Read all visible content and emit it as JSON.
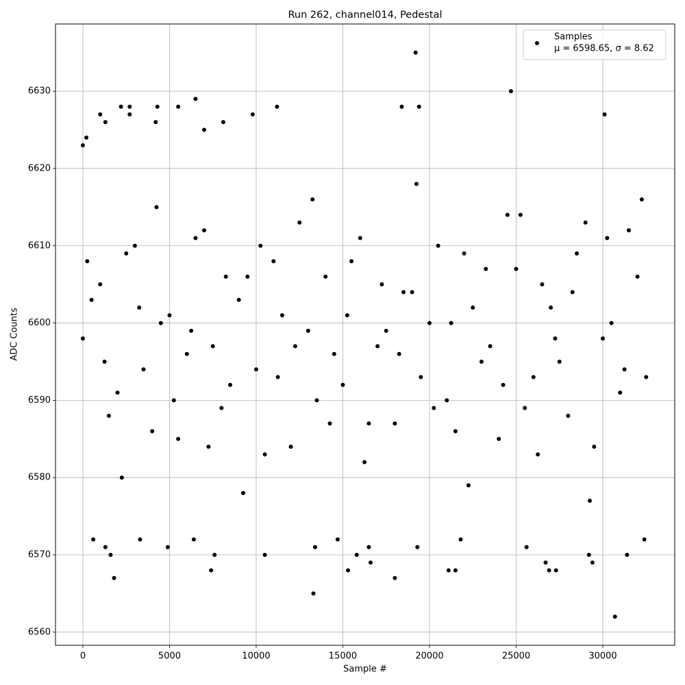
{
  "chart_data": {
    "type": "scatter",
    "title": "Run 262, channel014, Pedestal",
    "x_label": "Sample #",
    "y_label": "ADC Counts",
    "xlim": [
      -1580,
      34150
    ],
    "ylim": [
      6558.3,
      6638.7
    ],
    "xticks": [
      0,
      5000,
      10000,
      15000,
      20000,
      25000,
      30000
    ],
    "yticks": [
      6560,
      6570,
      6580,
      6590,
      6600,
      6610,
      6620,
      6630
    ],
    "grid": true,
    "legend": "upper right",
    "annotation": "μ = 6598.65, σ = 8.62",
    "series": [
      {
        "name": "Samples",
        "color": "#000000",
        "x": [
          0,
          1000,
          2000,
          3000,
          4000,
          5000,
          6000,
          7000,
          8000,
          9000,
          10000,
          11000,
          12000,
          13000,
          14000,
          15000,
          16000,
          17000,
          18000,
          19000,
          20000,
          21000,
          22000,
          23000,
          24000,
          25000,
          26000,
          27000,
          28000,
          29000,
          30000,
          31000,
          32000,
          500,
          1500,
          2500,
          3500,
          4500,
          5500,
          6500,
          7500,
          8500,
          9500,
          10500,
          11500,
          12500,
          13500,
          14500,
          15500,
          16500,
          17500,
          18500,
          19500,
          20500,
          21500,
          22500,
          23500,
          24500,
          25500,
          26500,
          27500,
          28500,
          29500,
          30500,
          31500,
          32500,
          250,
          1250,
          2250,
          3250,
          4250,
          5250,
          6250,
          7250,
          8250,
          9250,
          10250,
          11250,
          12250,
          13250,
          14250,
          15250,
          16250,
          17250,
          18250,
          19250,
          20250,
          21250,
          22250,
          23250,
          24250,
          25250,
          26250,
          27250,
          28250,
          29250,
          30250,
          31250,
          32250,
          0,
          200,
          1000,
          1300,
          2200,
          2700,
          2700,
          4200,
          4300,
          5500,
          6500,
          7000,
          8100,
          9800,
          11200,
          19200,
          19400,
          18400,
          24700,
          30100,
          13300,
          30700,
          1800,
          18000,
          7400,
          15300,
          21100,
          21500,
          26900,
          27300,
          1600,
          7600,
          10500,
          15800,
          29200,
          31400,
          1300,
          4900,
          13400,
          19300,
          25600,
          16500,
          16600,
          26700,
          29400,
          600,
          3300,
          6400,
          14700,
          21800,
          32400
        ],
        "values": [
          6598,
          6605,
          6591,
          6610,
          6586,
          6601,
          6596,
          6612,
          6589,
          6603,
          6594,
          6608,
          6584,
          6599,
          6606,
          6592,
          6611,
          6597,
          6587,
          6604,
          6600,
          6590,
          6609,
          6595,
          6585,
          6607,
          6593,
          6602,
          6588,
          6613,
          6598,
          6591,
          6606,
          6603,
          6588,
          6609,
          6594,
          6600,
          6585,
          6611,
          6597,
          6592,
          6606,
          6583,
          6601,
          6613,
          6590,
          6596,
          6608,
          6587,
          6599,
          6604,
          6593,
          6610,
          6586,
          6602,
          6597,
          6614,
          6589,
          6605,
          6595,
          6609,
          6584,
          6600,
          6612,
          6593,
          6608,
          6595,
          6580,
          6602,
          6615,
          6590,
          6599,
          6584,
          6606,
          6578,
          6610,
          6593,
          6597,
          6616,
          6587,
          6601,
          6582,
          6605,
          6596,
          6618,
          6589,
          6600,
          6579,
          6607,
          6592,
          6614,
          6583,
          6598,
          6604,
          6577,
          6611,
          6594,
          6616,
          6623,
          6624,
          6627,
          6626,
          6628,
          6628,
          6627,
          6626,
          6628,
          6628,
          6629,
          6625,
          6626,
          6627,
          6628,
          6635,
          6628,
          6628,
          6630,
          6627,
          6565,
          6562,
          6567,
          6567,
          6568,
          6568,
          6568,
          6568,
          6568,
          6568,
          6570,
          6570,
          6570,
          6570,
          6570,
          6570,
          6571,
          6571,
          6571,
          6571,
          6571,
          6571,
          6569,
          6569,
          6569,
          6572,
          6572,
          6572,
          6572,
          6572,
          6572
        ]
      }
    ]
  }
}
